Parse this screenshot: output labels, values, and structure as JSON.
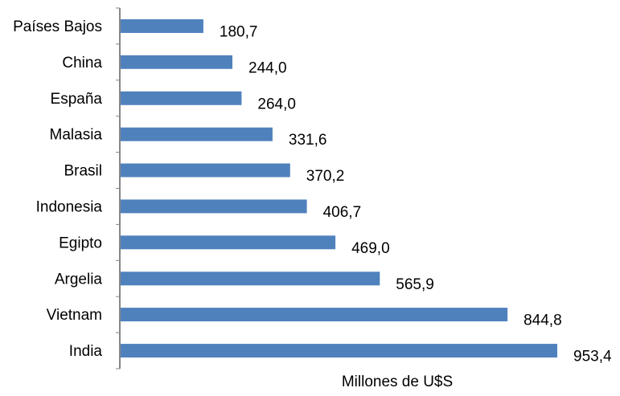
{
  "chart_data": {
    "type": "bar",
    "orientation": "horizontal",
    "categories": [
      "Países Bajos",
      "China",
      "España",
      "Malasia",
      "Brasil",
      "Indonesia",
      "Egipto",
      "Argelia",
      "Vietnam",
      "India"
    ],
    "values": [
      180.7,
      244.0,
      264.0,
      331.6,
      370.2,
      406.7,
      469.0,
      565.9,
      844.8,
      953.4
    ],
    "value_labels": [
      "180,7",
      "244,0",
      "264,0",
      "331,6",
      "370,2",
      "406,7",
      "469,0",
      "565,9",
      "844,8",
      "953,4"
    ],
    "xlabel": "Millones de U$S",
    "ylabel": "",
    "xlim": [
      0,
      953.4
    ],
    "grid": false,
    "legend": "none",
    "bar_color": "#4f81bd",
    "axis_color": "#868686"
  }
}
